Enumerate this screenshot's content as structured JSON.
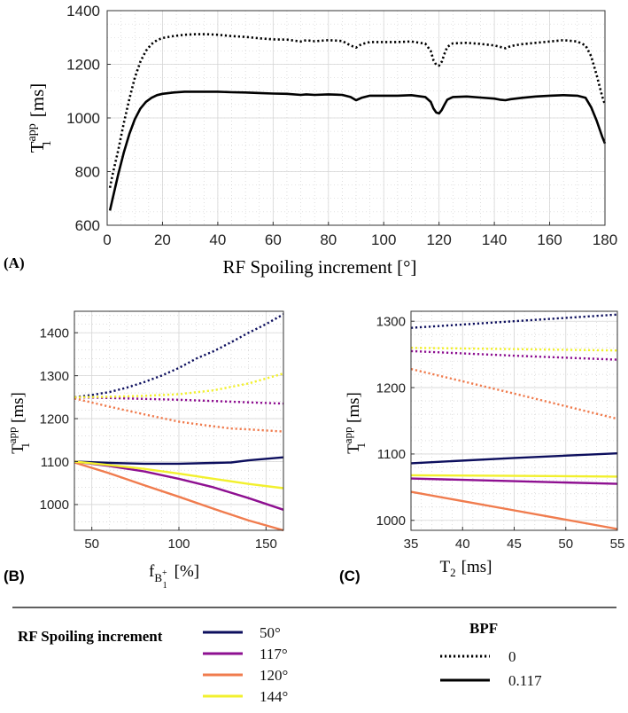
{
  "chart_data": [
    {
      "panel_label": "(A)",
      "type": "line",
      "xlabel": "RF Spoiling increment [°]",
      "ylabel_main": "T",
      "ylabel_sup": "app",
      "ylabel_sub": "1",
      "ylabel_unit": "[ms]",
      "xlim": [
        0,
        180
      ],
      "ylim": [
        600,
        1400
      ],
      "xticks": [
        0,
        20,
        40,
        60,
        80,
        100,
        120,
        140,
        160,
        180
      ],
      "yticks": [
        600,
        800,
        1000,
        1200,
        1400
      ],
      "grid": true,
      "series": [
        {
          "bpf": "0",
          "style": "dotted",
          "color": "#000000",
          "x": [
            1,
            2,
            4,
            6,
            8,
            10,
            12,
            14,
            16,
            18,
            20,
            24,
            28,
            32,
            36,
            40,
            45,
            50,
            55,
            60,
            65,
            70,
            72,
            75,
            80,
            85,
            88,
            90,
            92,
            95,
            100,
            105,
            110,
            115,
            117,
            118,
            119,
            120,
            121,
            122,
            123,
            125,
            130,
            135,
            140,
            142,
            144,
            146,
            150,
            155,
            160,
            165,
            170,
            173,
            175,
            177,
            179,
            180
          ],
          "y": [
            740,
            790,
            880,
            980,
            1070,
            1150,
            1210,
            1250,
            1275,
            1290,
            1298,
            1305,
            1310,
            1312,
            1312,
            1310,
            1305,
            1302,
            1297,
            1293,
            1292,
            1285,
            1290,
            1286,
            1290,
            1287,
            1270,
            1262,
            1275,
            1283,
            1283,
            1283,
            1285,
            1277,
            1250,
            1215,
            1198,
            1195,
            1210,
            1240,
            1265,
            1278,
            1280,
            1276,
            1270,
            1265,
            1260,
            1268,
            1275,
            1280,
            1285,
            1290,
            1285,
            1270,
            1230,
            1160,
            1080,
            1050
          ]
        },
        {
          "bpf": "0.117",
          "style": "solid",
          "color": "#000000",
          "x": [
            1,
            2,
            4,
            6,
            8,
            10,
            12,
            14,
            16,
            18,
            20,
            24,
            28,
            32,
            36,
            40,
            45,
            50,
            55,
            60,
            65,
            70,
            72,
            75,
            80,
            85,
            88,
            90,
            92,
            95,
            100,
            105,
            110,
            115,
            117,
            118,
            119,
            120,
            121,
            122,
            123,
            125,
            130,
            135,
            140,
            142,
            144,
            146,
            150,
            155,
            160,
            165,
            170,
            173,
            175,
            177,
            179,
            180
          ],
          "y": [
            655,
            700,
            790,
            870,
            940,
            995,
            1035,
            1060,
            1075,
            1085,
            1090,
            1095,
            1098,
            1098,
            1098,
            1098,
            1096,
            1095,
            1093,
            1091,
            1090,
            1086,
            1088,
            1086,
            1088,
            1086,
            1078,
            1066,
            1075,
            1083,
            1083,
            1083,
            1085,
            1078,
            1060,
            1035,
            1020,
            1017,
            1030,
            1050,
            1068,
            1078,
            1080,
            1076,
            1072,
            1068,
            1066,
            1070,
            1075,
            1080,
            1083,
            1085,
            1083,
            1075,
            1040,
            990,
            930,
            905
          ]
        }
      ]
    },
    {
      "panel_label": "(B)",
      "type": "line",
      "xlabel_main": "f",
      "xlabel_sub": "B",
      "xlabel_subsup": "+",
      "xlabel_subsub": "1",
      "xlabel_unit": "[%]",
      "ylabel_main": "T",
      "ylabel_sup": "app",
      "ylabel_sub": "1",
      "ylabel_unit": "[ms]",
      "xlim": [
        40,
        160
      ],
      "ylim": [
        940,
        1450
      ],
      "xticks": [
        50,
        100,
        150
      ],
      "yticks": [
        1000,
        1100,
        1200,
        1300,
        1400
      ],
      "grid": true,
      "series": [
        {
          "increment": "50°",
          "bpf": "0",
          "style": "dotted",
          "color": "#0d0f5e",
          "x": [
            40,
            50,
            60,
            70,
            80,
            90,
            100,
            110,
            120,
            130,
            140,
            150,
            160
          ],
          "y": [
            1250,
            1255,
            1262,
            1272,
            1285,
            1300,
            1318,
            1340,
            1357,
            1378,
            1400,
            1420,
            1443
          ]
        },
        {
          "increment": "50°",
          "bpf": "0.117",
          "style": "solid",
          "color": "#0d0f5e",
          "x": [
            40,
            60,
            80,
            100,
            120,
            130,
            140,
            160
          ],
          "y": [
            1100,
            1097,
            1095,
            1095,
            1097,
            1098,
            1103,
            1110
          ]
        },
        {
          "increment": "117°",
          "bpf": "0",
          "style": "dotted",
          "color": "#8e1091",
          "x": [
            40,
            60,
            80,
            100,
            120,
            140,
            160
          ],
          "y": [
            1250,
            1248,
            1246,
            1244,
            1241,
            1238,
            1235
          ]
        },
        {
          "increment": "117°",
          "bpf": "0.117",
          "style": "solid",
          "color": "#8e1091",
          "x": [
            40,
            60,
            80,
            100,
            120,
            140,
            160
          ],
          "y": [
            1100,
            1090,
            1077,
            1060,
            1040,
            1015,
            988
          ]
        },
        {
          "increment": "120°",
          "bpf": "0",
          "style": "dotted",
          "color": "#f07c4e",
          "x": [
            40,
            60,
            80,
            100,
            120,
            130,
            140,
            160
          ],
          "y": [
            1247,
            1228,
            1210,
            1193,
            1182,
            1177,
            1175,
            1170
          ]
        },
        {
          "increment": "120°",
          "bpf": "0.117",
          "style": "solid",
          "color": "#f07c4e",
          "x": [
            40,
            60,
            80,
            100,
            120,
            140,
            160
          ],
          "y": [
            1098,
            1073,
            1045,
            1018,
            990,
            963,
            940
          ]
        },
        {
          "increment": "144°",
          "bpf": "0",
          "style": "dotted",
          "color": "#f2f02e",
          "x": [
            40,
            60,
            80,
            100,
            120,
            140,
            160
          ],
          "y": [
            1250,
            1251,
            1253,
            1257,
            1266,
            1282,
            1305
          ]
        },
        {
          "increment": "144°",
          "bpf": "0.117",
          "style": "solid",
          "color": "#f2f02e",
          "x": [
            40,
            60,
            80,
            100,
            120,
            140,
            160
          ],
          "y": [
            1100,
            1092,
            1083,
            1072,
            1060,
            1048,
            1038
          ]
        }
      ]
    },
    {
      "panel_label": "(C)",
      "type": "line",
      "xlabel_main": "T",
      "xlabel_sub": "2",
      "xlabel_unit": "[ms]",
      "ylabel_main": "T",
      "ylabel_sup": "app",
      "ylabel_sub": "1",
      "ylabel_unit": "[ms]",
      "xlim": [
        35,
        55
      ],
      "ylim": [
        985,
        1315
      ],
      "xticks": [
        35,
        40,
        45,
        50,
        55
      ],
      "yticks": [
        1000,
        1100,
        1200,
        1300
      ],
      "grid": true,
      "series": [
        {
          "increment": "50°",
          "bpf": "0",
          "style": "dotted",
          "color": "#0d0f5e",
          "x": [
            35,
            45,
            55
          ],
          "y": [
            1290,
            1300,
            1310
          ]
        },
        {
          "increment": "50°",
          "bpf": "0.117",
          "style": "solid",
          "color": "#0d0f5e",
          "x": [
            35,
            45,
            55
          ],
          "y": [
            1086,
            1094,
            1101
          ]
        },
        {
          "increment": "117°",
          "bpf": "0",
          "style": "dotted",
          "color": "#8e1091",
          "x": [
            35,
            45,
            55
          ],
          "y": [
            1255,
            1248,
            1242
          ]
        },
        {
          "increment": "117°",
          "bpf": "0.117",
          "style": "solid",
          "color": "#8e1091",
          "x": [
            35,
            45,
            55
          ],
          "y": [
            1063,
            1059,
            1055
          ]
        },
        {
          "increment": "120°",
          "bpf": "0",
          "style": "dotted",
          "color": "#f07c4e",
          "x": [
            35,
            45,
            55
          ],
          "y": [
            1228,
            1191,
            1153
          ]
        },
        {
          "increment": "120°",
          "bpf": "0.117",
          "style": "solid",
          "color": "#f07c4e",
          "x": [
            35,
            45,
            55
          ],
          "y": [
            1043,
            1015,
            987
          ]
        },
        {
          "increment": "144°",
          "bpf": "0",
          "style": "dotted",
          "color": "#f2f02e",
          "x": [
            35,
            45,
            55
          ],
          "y": [
            1260,
            1258,
            1256
          ]
        },
        {
          "increment": "144°",
          "bpf": "0.117",
          "style": "solid",
          "color": "#f2f02e",
          "x": [
            35,
            45,
            55
          ],
          "y": [
            1068,
            1067,
            1066
          ]
        }
      ]
    }
  ],
  "legend": {
    "increment_title": "RF Spoiling increment",
    "increment_items": [
      {
        "label": "50°",
        "color": "#0d0f5e"
      },
      {
        "label": "117°",
        "color": "#8e1091"
      },
      {
        "label": "120°",
        "color": "#f07c4e"
      },
      {
        "label": "144°",
        "color": "#f2f02e"
      }
    ],
    "bpf_title": "BPF",
    "bpf_items": [
      {
        "label": "0",
        "style": "dotted"
      },
      {
        "label": "0.117",
        "style": "solid"
      }
    ]
  }
}
